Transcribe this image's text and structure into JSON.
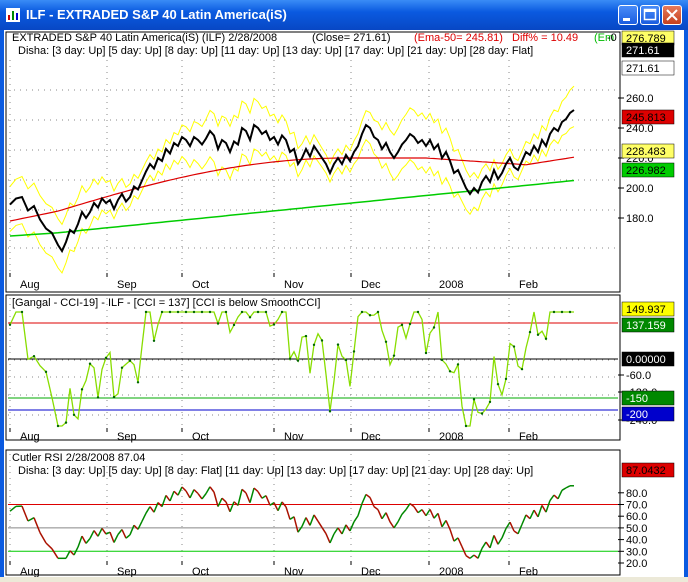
{
  "window": {
    "title": "ILF - EXTRADED S&P  40 Latin America(iS)",
    "title_icon": "chart-bars-icon",
    "buttons": [
      "minimize-icon",
      "maximize-icon",
      "close-icon"
    ]
  },
  "months": [
    "Aug",
    "Sep",
    "Oct",
    "Nov",
    "Dec",
    "2008",
    "Feb"
  ],
  "panel1": {
    "header_name": "EXTRADED S&P  40 Latin America(iS) (ILF) 2/28/2008",
    "header_close": "(Close= 271.61)",
    "header_ema": "(Ema-50= 245.81)",
    "header_diff": "Diff% = 10.49",
    "header_extra": "(Em",
    "header_cut": "-0",
    "disha": "Disha: [3 day: Up] [5 day: Up] [8 day: Up] [11 day: Up] [13 day: Up] [17 day: Up] [21 day: Up] [28 day: Flat]",
    "yticks": [
      "180.0",
      "200.0",
      "220.0",
      "240.0",
      "260.0"
    ],
    "badges": [
      {
        "text": "276.789",
        "bg": "#ffff66",
        "fg": "#000000"
      },
      {
        "text": "271.61",
        "bg": "#000000",
        "fg": "#ffffff"
      },
      {
        "text": "271.61",
        "bg": "#ffffff",
        "fg": "#000000"
      },
      {
        "text": "245.813",
        "bg": "#dd0000",
        "fg": "#000000"
      },
      {
        "text": "228.483",
        "bg": "#ffff66",
        "fg": "#000000"
      },
      {
        "text": "226.982",
        "bg": "#00cc00",
        "fg": "#000000"
      }
    ]
  },
  "panel2": {
    "header": "[Gangal - CCI-19]  - ILF - [CCI = 137]   [CCI is below SmoothCCI]",
    "yticks": [
      "-60.0",
      "-120.0",
      "-240.0"
    ],
    "badges": [
      {
        "text": "149.937",
        "bg": "#ffff00",
        "fg": "#000000"
      },
      {
        "text": "137.159",
        "bg": "#008800",
        "fg": "#ffffff"
      },
      {
        "text": "0.00000",
        "bg": "#000000",
        "fg": "#ffffff"
      },
      {
        "text": "-150",
        "bg": "#008800",
        "fg": "#ffffff"
      },
      {
        "text": "-200",
        "bg": "#0000cc",
        "fg": "#ffffff"
      }
    ]
  },
  "panel3": {
    "header": "Cutler RSI   2/28/2008    87.04",
    "disha": "Disha: [3 day: Up] [5 day: Up] [8 day: Flat] [11 day: Up] [13 day: Up] [17 day: Up] [21 day: Up] [28 day: Up]",
    "yticks": [
      "80.0",
      "70.0",
      "60.0",
      "50.0",
      "40.0",
      "30.0",
      "20.0"
    ],
    "badge": {
      "text": "87.0432",
      "bg": "#dd0000",
      "fg": "#000000"
    }
  },
  "colors": {
    "price": "#000000",
    "bollinger": "#ffff00",
    "ema50": "#dd0000",
    "ema200": "#00cc00",
    "cci_line": "#88dd00",
    "rsi_up": "#008800",
    "rsi_down": "#aa1100"
  }
}
